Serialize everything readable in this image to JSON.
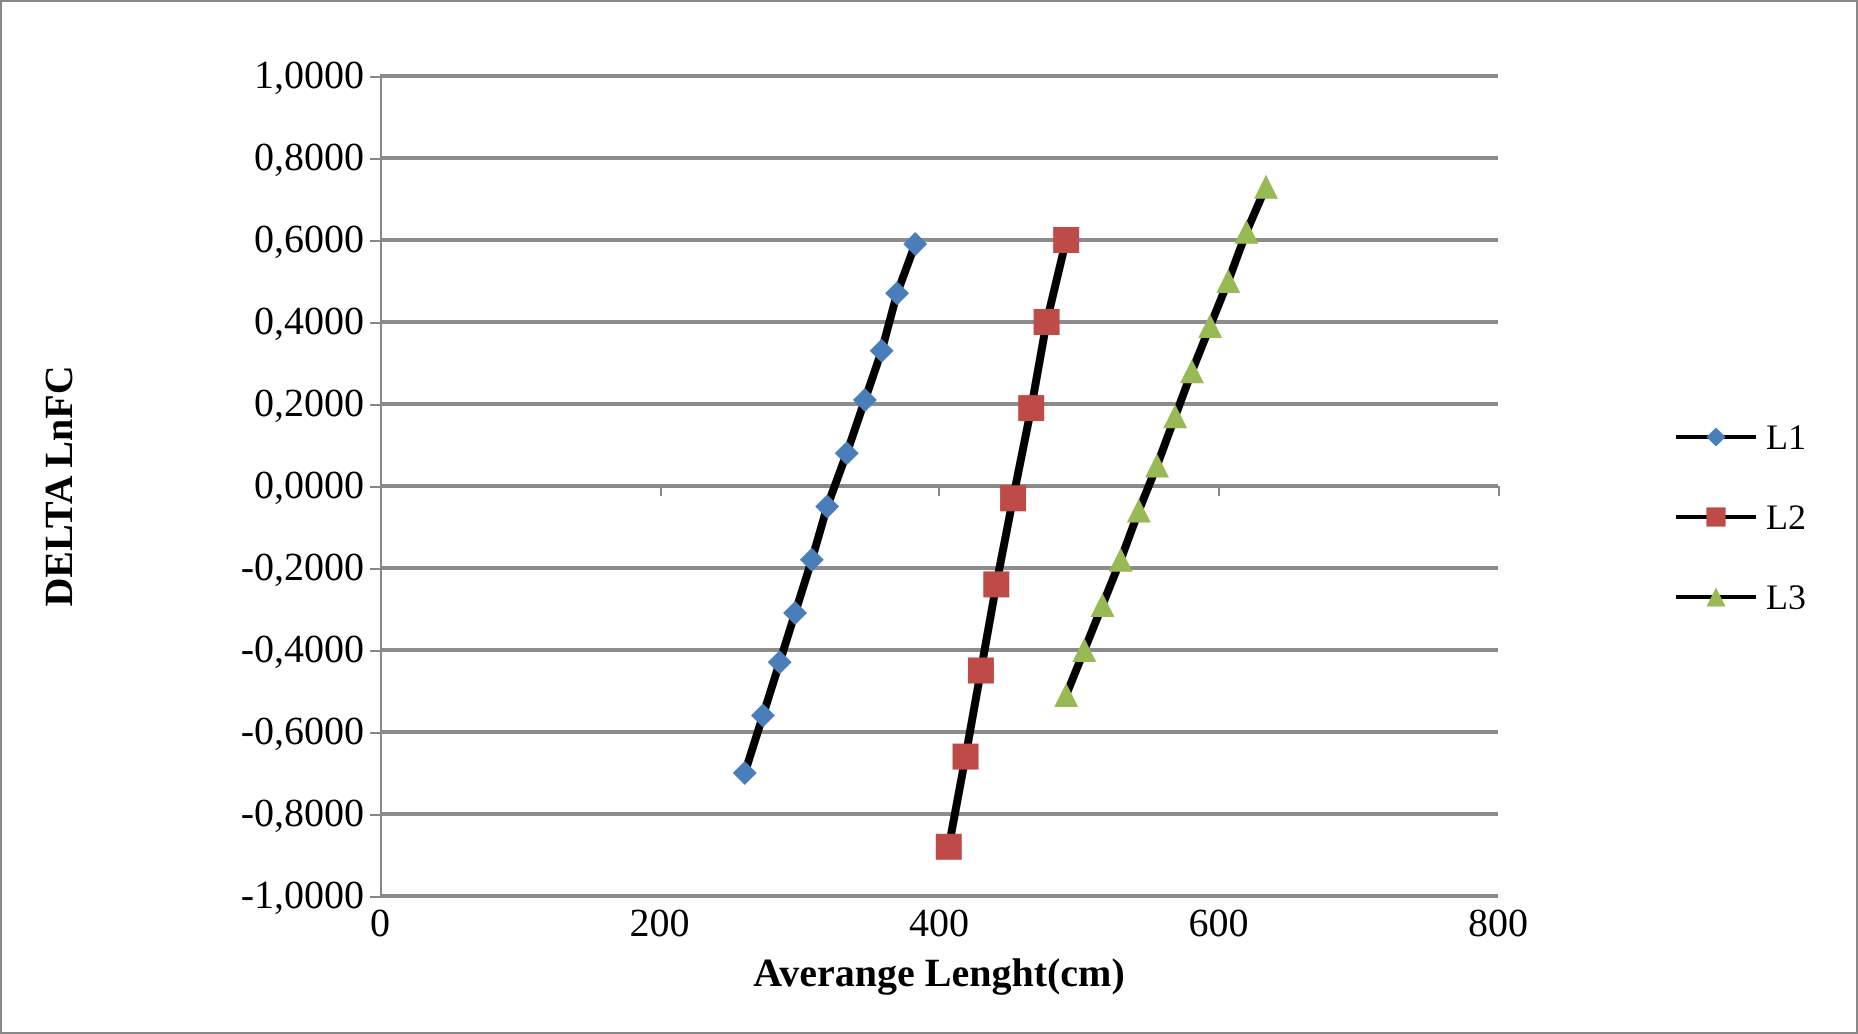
{
  "chart_data": {
    "type": "line",
    "xlabel": "Averange Lenght(cm)",
    "ylabel": "DELTA LnFC",
    "series": [
      {
        "name": "L1",
        "color": "#4a7ebb",
        "marker": "diamond",
        "x": [
          261,
          274,
          286,
          297,
          309,
          320,
          334,
          347,
          359,
          370,
          383
        ],
        "values": [
          -0.7,
          -0.56,
          -0.43,
          -0.31,
          -0.18,
          -0.05,
          0.08,
          0.21,
          0.33,
          0.47,
          0.59
        ]
      },
      {
        "name": "L2",
        "color": "#be4b48",
        "marker": "square",
        "x": [
          407,
          419,
          430,
          441,
          453,
          466,
          477,
          491
        ],
        "values": [
          -0.88,
          -0.66,
          -0.45,
          -0.24,
          -0.03,
          0.19,
          0.4,
          0.6
        ]
      },
      {
        "name": "L3",
        "color": "#98b954",
        "marker": "triangle",
        "x": [
          491,
          504,
          517,
          530,
          543,
          556,
          569,
          581,
          594,
          607,
          620,
          634
        ],
        "values": [
          -0.51,
          -0.4,
          -0.29,
          -0.18,
          -0.06,
          0.05,
          0.17,
          0.28,
          0.39,
          0.5,
          0.62,
          0.73
        ]
      }
    ],
    "xlim": [
      0,
      800
    ],
    "xticks": [
      0,
      200,
      400,
      600,
      800
    ],
    "ylim": [
      -1,
      1
    ],
    "yticks": [
      {
        "value": -1,
        "label": "-1,0000"
      },
      {
        "value": -0.8,
        "label": "-0,8000"
      },
      {
        "value": -0.6,
        "label": "-0,6000"
      },
      {
        "value": -0.4,
        "label": "-0,4000"
      },
      {
        "value": -0.2,
        "label": "-0,2000"
      },
      {
        "value": 0,
        "label": "0,0000"
      },
      {
        "value": 0.2,
        "label": "0,2000"
      },
      {
        "value": 0.4,
        "label": "0,4000"
      },
      {
        "value": 0.6,
        "label": "0,6000"
      },
      {
        "value": 0.8,
        "label": "0,8000"
      },
      {
        "value": 1,
        "label": "1,0000"
      }
    ],
    "grid": "y",
    "legend": "right",
    "line_style": "solid"
  }
}
